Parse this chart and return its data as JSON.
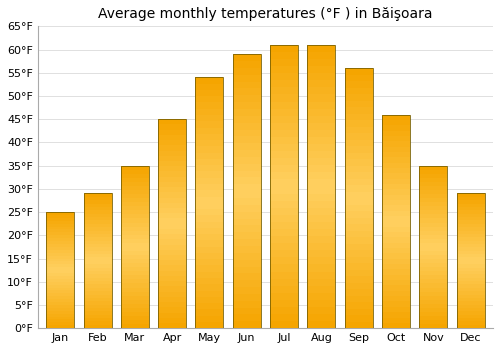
{
  "title": "Average monthly temperatures (°F ) in Băişoara",
  "months": [
    "Jan",
    "Feb",
    "Mar",
    "Apr",
    "May",
    "Jun",
    "Jul",
    "Aug",
    "Sep",
    "Oct",
    "Nov",
    "Dec"
  ],
  "values": [
    25,
    29,
    35,
    45,
    54,
    59,
    61,
    61,
    56,
    46,
    35,
    29
  ],
  "ylim": [
    0,
    65
  ],
  "yticks": [
    0,
    5,
    10,
    15,
    20,
    25,
    30,
    35,
    40,
    45,
    50,
    55,
    60,
    65
  ],
  "ytick_labels": [
    "0°F",
    "5°F",
    "10°F",
    "15°F",
    "20°F",
    "25°F",
    "30°F",
    "35°F",
    "40°F",
    "45°F",
    "50°F",
    "55°F",
    "60°F",
    "65°F"
  ],
  "bar_color_base": "#F5A500",
  "bar_color_mid": "#FFD060",
  "bar_border_color": "#7a6000",
  "background_color": "#ffffff",
  "grid_color": "#e0e0e0",
  "title_fontsize": 10,
  "tick_fontsize": 8
}
